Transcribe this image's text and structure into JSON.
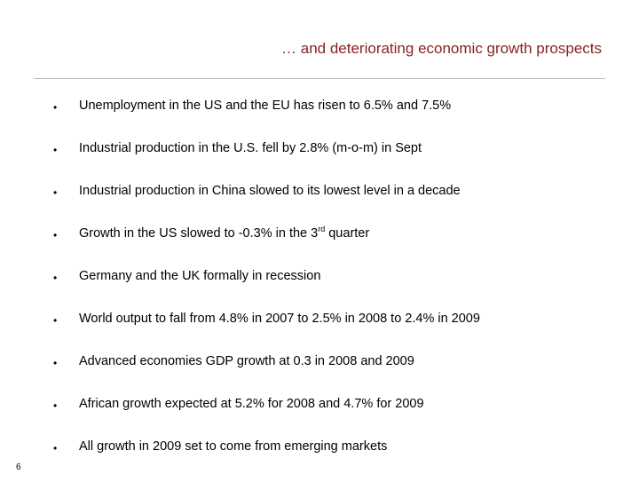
{
  "slide": {
    "title": "… and deteriorating economic growth prospects",
    "page_number": "6"
  },
  "bullets": [
    {
      "text": "Unemployment in the US and the EU has risen to 6.5% and 7.5%"
    },
    {
      "text": "Industrial production in the U.S. fell by 2.8% (m-o-m) in Sept"
    },
    {
      "text": "Industrial production in China slowed to its lowest level in a decade"
    },
    {
      "text_before": "Growth in the US slowed to -0.3% in the 3",
      "sup": "rd",
      "text_after": " quarter"
    },
    {
      "text": "Germany and the UK formally in recession"
    },
    {
      "text": "World output to fall from 4.8% in 2007 to 2.5% in 2008 to 2.4% in 2009"
    },
    {
      "text": "Advanced economies GDP growth at 0.3 in 2008 and 2009"
    },
    {
      "text": "African growth expected at 5.2% for 2008 and 4.7% for 2009"
    },
    {
      "text": "All growth in 2009 set to come from emerging markets"
    }
  ],
  "colors": {
    "title": "#8b1f1f",
    "rule": "#bdbdbd",
    "text": "#000000"
  }
}
